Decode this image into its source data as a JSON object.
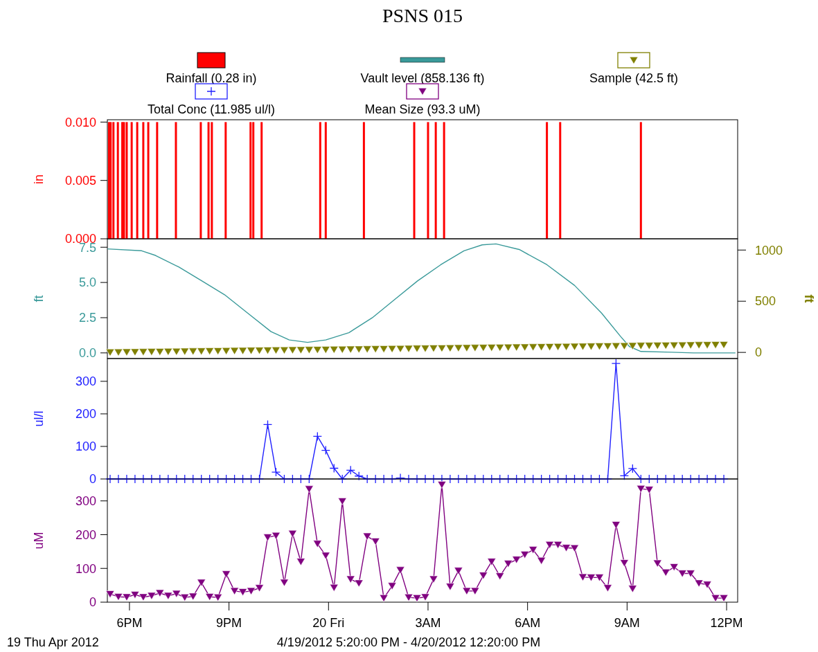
{
  "chart_data": [
    {
      "type": "bar",
      "title": "PSNS 015",
      "legend": "top",
      "tick_labels": "y",
      "ylabel": "in",
      "xlim": [
        "2012-04-19T17:20",
        "2012-04-20T12:20"
      ],
      "x": [
        "2012-04-19T17:23",
        "2012-04-19T17:26",
        "2012-04-19T17:31",
        "2012-04-19T17:39",
        "2012-04-19T17:47",
        "2012-04-19T17:50",
        "2012-04-19T17:55",
        "2012-04-19T18:04",
        "2012-04-19T18:14",
        "2012-04-19T18:25",
        "2012-04-19T18:34",
        "2012-04-19T18:50",
        "2012-04-19T19:24",
        "2012-04-19T20:09",
        "2012-04-19T20:23",
        "2012-04-19T20:29",
        "2012-04-19T20:54",
        "2012-04-19T21:39",
        "2012-04-19T21:44",
        "2012-04-19T21:59",
        "2012-04-19T23:45",
        "2012-04-19T23:55",
        "2012-04-20T01:04",
        "2012-04-20T02:35",
        "2012-04-20T03:00",
        "2012-04-20T03:14",
        "2012-04-20T03:29",
        "2012-04-20T06:35",
        "2012-04-20T06:59",
        "2012-04-20T09:25"
      ],
      "series": [
        {
          "name": "Rainfall (0.28 in)",
          "color": "#ff0000",
          "values": [
            0.01,
            0.01,
            0.01,
            0.01,
            0.01,
            0.01,
            0.01,
            0.01,
            0.01,
            0.01,
            0.01,
            0.01,
            0.01,
            0.01,
            0.01,
            0.01,
            0.01,
            0.01,
            0.01,
            0.01,
            0.01,
            0.01,
            0.01,
            0.01,
            0.01,
            0.01,
            0.01,
            0.01,
            0.01,
            0.01
          ]
        }
      ],
      "ylim": [
        0,
        0.0102
      ],
      "yticks": [
        {
          "value": 0,
          "label": "0.000"
        },
        {
          "value": 0.005,
          "label": "0.005"
        },
        {
          "value": 0.01,
          "label": "0.010"
        }
      ]
    },
    {
      "type": "line",
      "legend": "top",
      "tick_labels": "y",
      "ylabel": "ft",
      "y2label": "ft",
      "xlim": [
        "2012-04-19T17:20",
        "2012-04-20T12:20"
      ],
      "x": [
        "2012-04-19T17:25",
        "2012-04-19T17:40",
        "2012-04-19T17:55",
        "2012-04-19T18:10",
        "2012-04-19T18:25",
        "2012-04-19T18:40",
        "2012-04-19T18:55",
        "2012-04-19T19:10",
        "2012-04-19T19:25",
        "2012-04-19T19:40",
        "2012-04-19T19:55",
        "2012-04-19T20:10",
        "2012-04-19T20:25",
        "2012-04-19T20:40",
        "2012-04-19T20:55",
        "2012-04-19T21:10",
        "2012-04-19T21:25",
        "2012-04-19T21:40",
        "2012-04-19T21:55",
        "2012-04-19T22:10",
        "2012-04-19T22:25",
        "2012-04-19T22:40",
        "2012-04-19T22:55",
        "2012-04-19T23:10",
        "2012-04-19T23:25",
        "2012-04-19T23:40",
        "2012-04-19T23:55",
        "2012-04-20T00:10",
        "2012-04-20T00:25",
        "2012-04-20T00:40",
        "2012-04-20T00:55",
        "2012-04-20T01:10",
        "2012-04-20T01:25",
        "2012-04-20T01:40",
        "2012-04-20T01:55",
        "2012-04-20T02:10",
        "2012-04-20T02:25",
        "2012-04-20T02:40",
        "2012-04-20T02:55",
        "2012-04-20T03:10",
        "2012-04-20T03:25",
        "2012-04-20T03:40",
        "2012-04-20T03:55",
        "2012-04-20T04:10",
        "2012-04-20T04:25",
        "2012-04-20T04:40",
        "2012-04-20T04:55",
        "2012-04-20T05:10",
        "2012-04-20T05:25",
        "2012-04-20T05:40",
        "2012-04-20T05:55",
        "2012-04-20T06:10",
        "2012-04-20T06:25",
        "2012-04-20T06:40",
        "2012-04-20T06:55",
        "2012-04-20T07:10",
        "2012-04-20T07:25",
        "2012-04-20T07:40",
        "2012-04-20T07:55",
        "2012-04-20T08:10",
        "2012-04-20T08:25",
        "2012-04-20T08:40",
        "2012-04-20T08:55",
        "2012-04-20T09:10",
        "2012-04-20T09:25",
        "2012-04-20T09:40",
        "2012-04-20T09:55",
        "2012-04-20T10:10",
        "2012-04-20T10:25",
        "2012-04-20T10:40",
        "2012-04-20T10:55",
        "2012-04-20T11:10",
        "2012-04-20T11:25",
        "2012-04-20T11:40",
        "2012-04-20T11:55"
      ],
      "series": [
        {
          "name": "Vault level (858.136 ft)",
          "color": "#3a9a9a",
          "marker": "none",
          "x": [
            "2012-04-19T17:20",
            "2012-04-19T18:22",
            "2012-04-19T18:47",
            "2012-04-19T19:29",
            "2012-04-19T20:11",
            "2012-04-19T20:52",
            "2012-04-19T21:34",
            "2012-04-19T22:16",
            "2012-04-19T22:49",
            "2012-04-19T23:22",
            "2012-04-19T23:55",
            "2012-04-20T00:37",
            "2012-04-20T01:19",
            "2012-04-20T02:00",
            "2012-04-20T02:41",
            "2012-04-20T03:23",
            "2012-04-20T04:05",
            "2012-04-20T04:38",
            "2012-04-20T05:03",
            "2012-04-20T05:45",
            "2012-04-20T06:35",
            "2012-04-20T07:25",
            "2012-04-20T08:14",
            "2012-04-20T08:48",
            "2012-04-20T09:04",
            "2012-04-20T09:25",
            "2012-04-20T10:20",
            "2012-04-20T11:00",
            "2012-04-20T12:16"
          ],
          "values": [
            7.38,
            7.25,
            6.92,
            6.1,
            5.11,
            4.13,
            2.82,
            1.51,
            0.92,
            0.75,
            0.92,
            1.44,
            2.49,
            3.8,
            5.11,
            6.26,
            7.25,
            7.67,
            7.74,
            7.34,
            6.26,
            4.79,
            2.82,
            1.18,
            0.46,
            0.1,
            0.05,
            0,
            0
          ]
        },
        {
          "name": "Sample (42.5 ft)",
          "type": "scatter",
          "axis": "y2",
          "marker": "triangle",
          "color": "#808000",
          "values": [
            0,
            1,
            2,
            3,
            4,
            5,
            6,
            7,
            8,
            9,
            10,
            11,
            12,
            13,
            14,
            15,
            16,
            17,
            18,
            19,
            20,
            21,
            22,
            23,
            24,
            25,
            26,
            27,
            28,
            29,
            30,
            31,
            32,
            33,
            34,
            35,
            36,
            37,
            38,
            39,
            40,
            41,
            42,
            43,
            44,
            45,
            46,
            47,
            48,
            49,
            50,
            51,
            52,
            53,
            54,
            55,
            56,
            57,
            58,
            59,
            60,
            61,
            62,
            63,
            64,
            65,
            66,
            67,
            68,
            69,
            70,
            71,
            72,
            73,
            74
          ]
        }
      ],
      "ylim": [
        -0.4,
        8.1
      ],
      "yticks": [
        {
          "value": 0,
          "label": "0.0"
        },
        {
          "value": 2.5,
          "label": "2.5"
        },
        {
          "value": 5,
          "label": "5.0"
        },
        {
          "value": 7.5,
          "label": "7.5"
        }
      ],
      "y2lim": [
        -60,
        1110
      ],
      "y2ticks": [
        0,
        500,
        1000
      ]
    },
    {
      "type": "line",
      "legend": "top",
      "tick_labels": "y",
      "ylabel": "ul/l",
      "marker": "cross",
      "xlim": [
        "2012-04-19T17:20",
        "2012-04-20T12:20"
      ],
      "x": [
        "2012-04-19T17:25",
        "2012-04-19T17:40",
        "2012-04-19T17:55",
        "2012-04-19T18:10",
        "2012-04-19T18:25",
        "2012-04-19T18:40",
        "2012-04-19T18:55",
        "2012-04-19T19:10",
        "2012-04-19T19:25",
        "2012-04-19T19:40",
        "2012-04-19T19:55",
        "2012-04-19T20:10",
        "2012-04-19T20:25",
        "2012-04-19T20:40",
        "2012-04-19T20:55",
        "2012-04-19T21:10",
        "2012-04-19T21:25",
        "2012-04-19T21:40",
        "2012-04-19T21:55",
        "2012-04-19T22:10",
        "2012-04-19T22:25",
        "2012-04-19T22:40",
        "2012-04-19T22:55",
        "2012-04-19T23:10",
        "2012-04-19T23:25",
        "2012-04-19T23:40",
        "2012-04-19T23:55",
        "2012-04-20T00:10",
        "2012-04-20T00:25",
        "2012-04-20T00:40",
        "2012-04-20T00:55",
        "2012-04-20T01:10",
        "2012-04-20T01:25",
        "2012-04-20T01:40",
        "2012-04-20T01:55",
        "2012-04-20T02:10",
        "2012-04-20T02:25",
        "2012-04-20T02:40",
        "2012-04-20T02:55",
        "2012-04-20T03:10",
        "2012-04-20T03:25",
        "2012-04-20T03:40",
        "2012-04-20T03:55",
        "2012-04-20T04:10",
        "2012-04-20T04:25",
        "2012-04-20T04:40",
        "2012-04-20T04:55",
        "2012-04-20T05:10",
        "2012-04-20T05:25",
        "2012-04-20T05:40",
        "2012-04-20T05:55",
        "2012-04-20T06:10",
        "2012-04-20T06:25",
        "2012-04-20T06:40",
        "2012-04-20T06:55",
        "2012-04-20T07:10",
        "2012-04-20T07:25",
        "2012-04-20T07:40",
        "2012-04-20T07:55",
        "2012-04-20T08:10",
        "2012-04-20T08:25",
        "2012-04-20T08:40",
        "2012-04-20T08:55",
        "2012-04-20T09:10",
        "2012-04-20T09:25",
        "2012-04-20T09:40",
        "2012-04-20T09:55",
        "2012-04-20T10:10",
        "2012-04-20T10:25",
        "2012-04-20T10:40",
        "2012-04-20T10:55",
        "2012-04-20T11:10",
        "2012-04-20T11:25",
        "2012-04-20T11:40",
        "2012-04-20T11:55"
      ],
      "series": [
        {
          "name": "Total Conc (11.985 ul/l)",
          "color": "#2020ff",
          "values": [
            0,
            0,
            0,
            0,
            0,
            0,
            0,
            0,
            0,
            0,
            0,
            0,
            0,
            0,
            0,
            0,
            0,
            0,
            0,
            167,
            21,
            0,
            0,
            0,
            0,
            131,
            88,
            33,
            0,
            27,
            9,
            0,
            0,
            0,
            0,
            3,
            0,
            0,
            0,
            0,
            0,
            0,
            0,
            0,
            0,
            0,
            0,
            0,
            0,
            0,
            0,
            0,
            0,
            0,
            0,
            0,
            0,
            0,
            0,
            0,
            0,
            355,
            10,
            32,
            0,
            0,
            0,
            0,
            0,
            0,
            0,
            0,
            0,
            0,
            0
          ]
        }
      ],
      "ylim": [
        0,
        370
      ],
      "yticks": [
        0,
        100,
        200,
        300
      ]
    },
    {
      "type": "line",
      "legend": "top",
      "ylabel": "uM",
      "marker": "triangle",
      "xlim": [
        "2012-04-19T17:20",
        "2012-04-20T12:20"
      ],
      "xticks": [
        {
          "value": "2012-04-19T18:00",
          "label": "6PM"
        },
        {
          "value": "2012-04-19T21:00",
          "label": "9PM"
        },
        {
          "value": "2012-04-20T00:00",
          "label": "20 Fri"
        },
        {
          "value": "2012-04-20T03:00",
          "label": "3AM"
        },
        {
          "value": "2012-04-20T06:00",
          "label": "6AM"
        },
        {
          "value": "2012-04-20T09:00",
          "label": "9AM"
        },
        {
          "value": "2012-04-20T12:00",
          "label": "12PM"
        }
      ],
      "x": [
        "2012-04-19T17:25",
        "2012-04-19T17:40",
        "2012-04-19T17:55",
        "2012-04-19T18:10",
        "2012-04-19T18:25",
        "2012-04-19T18:40",
        "2012-04-19T18:55",
        "2012-04-19T19:10",
        "2012-04-19T19:25",
        "2012-04-19T19:40",
        "2012-04-19T19:55",
        "2012-04-19T20:10",
        "2012-04-19T20:25",
        "2012-04-19T20:40",
        "2012-04-19T20:55",
        "2012-04-19T21:10",
        "2012-04-19T21:25",
        "2012-04-19T21:40",
        "2012-04-19T21:55",
        "2012-04-19T22:10",
        "2012-04-19T22:25",
        "2012-04-19T22:40",
        "2012-04-19T22:55",
        "2012-04-19T23:10",
        "2012-04-19T23:25",
        "2012-04-19T23:40",
        "2012-04-19T23:55",
        "2012-04-20T00:10",
        "2012-04-20T00:25",
        "2012-04-20T00:40",
        "2012-04-20T00:55",
        "2012-04-20T01:10",
        "2012-04-20T01:25",
        "2012-04-20T01:40",
        "2012-04-20T01:55",
        "2012-04-20T02:10",
        "2012-04-20T02:25",
        "2012-04-20T02:40",
        "2012-04-20T02:55",
        "2012-04-20T03:10",
        "2012-04-20T03:25",
        "2012-04-20T03:40",
        "2012-04-20T03:55",
        "2012-04-20T04:10",
        "2012-04-20T04:25",
        "2012-04-20T04:40",
        "2012-04-20T04:55",
        "2012-04-20T05:10",
        "2012-04-20T05:25",
        "2012-04-20T05:40",
        "2012-04-20T05:55",
        "2012-04-20T06:10",
        "2012-04-20T06:25",
        "2012-04-20T06:40",
        "2012-04-20T06:55",
        "2012-04-20T07:10",
        "2012-04-20T07:25",
        "2012-04-20T07:40",
        "2012-04-20T07:55",
        "2012-04-20T08:10",
        "2012-04-20T08:25",
        "2012-04-20T08:40",
        "2012-04-20T08:55",
        "2012-04-20T09:10",
        "2012-04-20T09:25",
        "2012-04-20T09:40",
        "2012-04-20T09:55",
        "2012-04-20T10:10",
        "2012-04-20T10:25",
        "2012-04-20T10:40",
        "2012-04-20T10:55",
        "2012-04-20T11:10",
        "2012-04-20T11:25",
        "2012-04-20T11:40",
        "2012-04-20T11:55"
      ],
      "series": [
        {
          "name": "Mean Size (93.3 uM)",
          "color": "#800080",
          "values": [
            24,
            16,
            15,
            22,
            15,
            19,
            27,
            19,
            25,
            14,
            17,
            58,
            16,
            14,
            83,
            33,
            30,
            33,
            42,
            192,
            197,
            58,
            203,
            120,
            335,
            173,
            138,
            43,
            299,
            68,
            56,
            195,
            180,
            12,
            48,
            95,
            14,
            12,
            15,
            68,
            348,
            46,
            93,
            33,
            33,
            79,
            120,
            77,
            114,
            126,
            141,
            155,
            123,
            170,
            170,
            161,
            160,
            74,
            73,
            73,
            42,
            229,
            116,
            40,
            336,
            333,
            115,
            88,
            104,
            85,
            85,
            56,
            52,
            12,
            12
          ]
        }
      ],
      "ylim": [
        0,
        365
      ],
      "yticks": [
        0,
        100,
        200,
        300
      ],
      "annotations": [
        "19 Thu Apr 2012",
        "4/19/2012 5:20:00 PM - 4/20/2012 12:20:00 PM"
      ]
    }
  ]
}
